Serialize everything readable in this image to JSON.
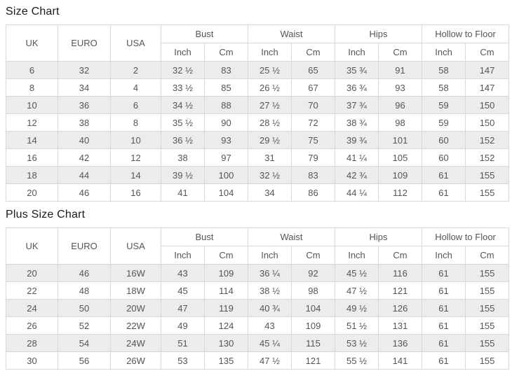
{
  "colors": {
    "stripe": "#ececec",
    "border": "#d8d8d8",
    "cell_text": "#555555",
    "title_text": "#1a1a1a",
    "background": "#ffffff"
  },
  "tables": [
    {
      "title": "Size Chart",
      "plain_headers": [
        "UK",
        "EURO",
        "USA"
      ],
      "group_headers": [
        "Bust",
        "Waist",
        "Hips",
        "Hollow to Floor"
      ],
      "sub_headers": [
        "Inch",
        "Cm"
      ],
      "rows": [
        [
          "6",
          "32",
          "2",
          "32 ½",
          "83",
          "25 ½",
          "65",
          "35 ¾",
          "91",
          "58",
          "147"
        ],
        [
          "8",
          "34",
          "4",
          "33 ½",
          "85",
          "26 ½",
          "67",
          "36 ¾",
          "93",
          "58",
          "147"
        ],
        [
          "10",
          "36",
          "6",
          "34 ½",
          "88",
          "27 ½",
          "70",
          "37 ¾",
          "96",
          "59",
          "150"
        ],
        [
          "12",
          "38",
          "8",
          "35 ½",
          "90",
          "28 ½",
          "72",
          "38 ¾",
          "98",
          "59",
          "150"
        ],
        [
          "14",
          "40",
          "10",
          "36 ½",
          "93",
          "29 ½",
          "75",
          "39 ¾",
          "101",
          "60",
          "152"
        ],
        [
          "16",
          "42",
          "12",
          "38",
          "97",
          "31",
          "79",
          "41 ¼",
          "105",
          "60",
          "152"
        ],
        [
          "18",
          "44",
          "14",
          "39 ½",
          "100",
          "32 ½",
          "83",
          "42 ¾",
          "109",
          "61",
          "155"
        ],
        [
          "20",
          "46",
          "16",
          "41",
          "104",
          "34",
          "86",
          "44 ¼",
          "112",
          "61",
          "155"
        ]
      ]
    },
    {
      "title": "Plus Size Chart",
      "plain_headers": [
        "UK",
        "EURO",
        "USA"
      ],
      "group_headers": [
        "Bust",
        "Waist",
        "Hips",
        "Hollow to Floor"
      ],
      "sub_headers": [
        "Inch",
        "Cm"
      ],
      "rows": [
        [
          "20",
          "46",
          "16W",
          "43",
          "109",
          "36 ¼",
          "92",
          "45 ½",
          "116",
          "61",
          "155"
        ],
        [
          "22",
          "48",
          "18W",
          "45",
          "114",
          "38 ½",
          "98",
          "47 ½",
          "121",
          "61",
          "155"
        ],
        [
          "24",
          "50",
          "20W",
          "47",
          "119",
          "40 ¾",
          "104",
          "49 ½",
          "126",
          "61",
          "155"
        ],
        [
          "26",
          "52",
          "22W",
          "49",
          "124",
          "43",
          "109",
          "51 ½",
          "131",
          "61",
          "155"
        ],
        [
          "28",
          "54",
          "24W",
          "51",
          "130",
          "45 ¼",
          "115",
          "53 ½",
          "136",
          "61",
          "155"
        ],
        [
          "30",
          "56",
          "26W",
          "53",
          "135",
          "47 ½",
          "121",
          "55 ½",
          "141",
          "61",
          "155"
        ]
      ]
    }
  ]
}
